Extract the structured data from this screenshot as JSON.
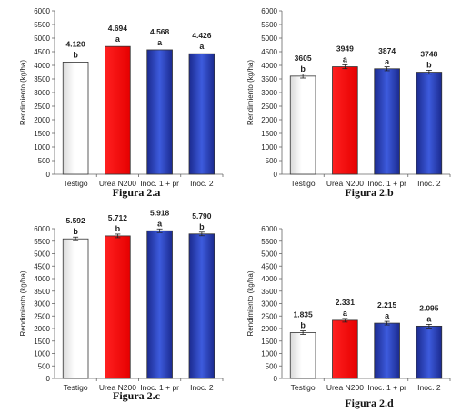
{
  "colors": {
    "testigo": "#ffffff",
    "urea": "#ff1a1a",
    "inoc_dark": "#1f2f9a",
    "inoc_light": "#3f5ee0"
  },
  "chart_data": [
    {
      "type": "bar",
      "caption": "Figura 2.a",
      "categories": [
        "Testigo",
        "Urea N200",
        "Inoc. 1 + pr",
        "Inoc. 2"
      ],
      "values": [
        4120,
        4694,
        4568,
        4426
      ],
      "value_labels": [
        "4.120",
        "4.694",
        "4.568",
        "4.426"
      ],
      "significance": [
        "b",
        "a",
        "a",
        "a"
      ],
      "error_bars": false,
      "ylabel": "Rendimiento (kg/ha)",
      "ylim": [
        0,
        6000
      ],
      "yticks": [
        "0",
        "500",
        "1000",
        "1500",
        "2000",
        "2500",
        "3000",
        "3500",
        "4000",
        "4500",
        "5000",
        "5500",
        "6000"
      ]
    },
    {
      "type": "bar",
      "caption": "Figura 2.b",
      "categories": [
        "Testigo",
        "Urea N200",
        "Inoc. 1 + pr",
        "Inoc. 2"
      ],
      "values": [
        3605,
        3949,
        3874,
        3748
      ],
      "value_labels": [
        "3605",
        "3949",
        "3874",
        "3748"
      ],
      "significance": [
        "b",
        "a",
        "a",
        "b"
      ],
      "error_bars": true,
      "ylabel": "Rendimiento (kg/ha)",
      "ylim": [
        0,
        6000
      ],
      "yticks": [
        "0",
        "500",
        "1000",
        "1500",
        "2000",
        "2500",
        "3000",
        "3500",
        "4000",
        "4500",
        "5000",
        "5500",
        "6000"
      ]
    },
    {
      "type": "bar",
      "caption": "Figura 2.c",
      "categories": [
        "Testigo",
        "Urea N200",
        "Inoc. 1 + pr",
        "Inoc. 2"
      ],
      "values": [
        5592,
        5712,
        5918,
        5790
      ],
      "value_labels": [
        "5.592",
        "5.712",
        "5.918",
        "5.790"
      ],
      "significance": [
        "b",
        "b",
        "a",
        "b"
      ],
      "error_bars": true,
      "ylabel": "Rendimiento (kg/ha)",
      "ylim": [
        0,
        6000
      ],
      "yticks": [
        "0",
        "500",
        "1000",
        "1500",
        "2000",
        "2500",
        "3000",
        "3500",
        "4000",
        "4500",
        "5000",
        "5500",
        "6000"
      ]
    },
    {
      "type": "bar",
      "caption": "Figura 2.d",
      "categories": [
        "Testigo",
        "Urea N200",
        "Inoc. 1 + pr",
        "Inoc. 2"
      ],
      "values": [
        1835,
        2331,
        2215,
        2095
      ],
      "value_labels": [
        "1.835",
        "2.331",
        "2.215",
        "2.095"
      ],
      "significance": [
        "b",
        "a",
        "a",
        "a"
      ],
      "error_bars": true,
      "ylabel": "Rendimiento (kg/ha)",
      "ylim": [
        0,
        6000
      ],
      "yticks": [
        "0",
        "500",
        "1000",
        "1500",
        "2000",
        "2500",
        "3000",
        "3500",
        "4000",
        "4500",
        "5000",
        "5500",
        "6000"
      ]
    }
  ]
}
